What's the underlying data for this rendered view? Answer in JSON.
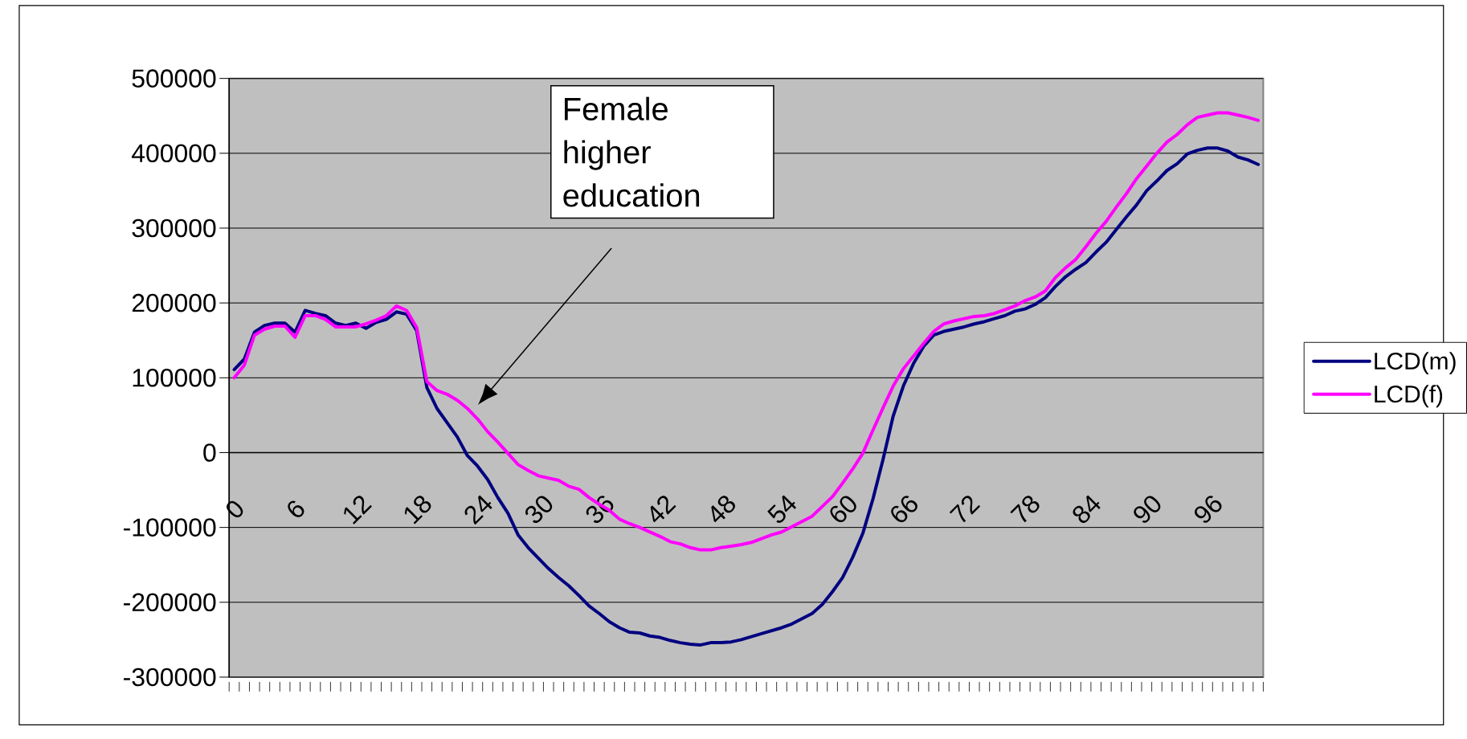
{
  "chart_data": {
    "type": "line",
    "categories": [
      "0",
      null,
      null,
      null,
      null,
      null,
      "6",
      null,
      null,
      null,
      null,
      null,
      "12",
      null,
      null,
      null,
      null,
      null,
      "18",
      null,
      null,
      null,
      null,
      null,
      "24",
      null,
      null,
      null,
      null,
      null,
      "30",
      null,
      null,
      null,
      null,
      null,
      "36",
      null,
      null,
      null,
      null,
      null,
      "42",
      null,
      null,
      null,
      null,
      null,
      "48",
      null,
      null,
      null,
      null,
      null,
      "54",
      null,
      null,
      null,
      null,
      null,
      "60",
      null,
      null,
      null,
      null,
      null,
      "66",
      null,
      null,
      null,
      null,
      null,
      "72",
      null,
      null,
      null,
      null,
      null,
      "78",
      null,
      null,
      null,
      null,
      null,
      "84",
      null,
      null,
      null,
      null,
      null,
      "90",
      null,
      null,
      null,
      null,
      null,
      "96",
      null,
      null,
      null,
      null,
      null
    ],
    "series": [
      {
        "name": "LCD(m)",
        "color": "#000080",
        "values": [
          111000,
          125000,
          161000,
          170000,
          173000,
          173000,
          161000,
          190000,
          186000,
          183000,
          173000,
          170000,
          173000,
          166000,
          174000,
          178000,
          188000,
          185000,
          163000,
          87000,
          59000,
          40000,
          21000,
          -4000,
          -18000,
          -36000,
          -60000,
          -81000,
          -110000,
          -127000,
          -141000,
          -155000,
          -167000,
          -178000,
          -191000,
          -205000,
          -215000,
          -226000,
          -234000,
          -240000,
          -241000,
          -245000,
          -247000,
          -251000,
          -254000,
          -256000,
          -257000,
          -254000,
          -254000,
          -253000,
          -250000,
          -246000,
          -242000,
          -238000,
          -234000,
          -229000,
          -222000,
          -215000,
          -203000,
          -186000,
          -167000,
          -140000,
          -108000,
          -62000,
          -9000,
          49000,
          89000,
          119000,
          142000,
          157000,
          162000,
          165000,
          168000,
          172000,
          175000,
          179000,
          183000,
          189000,
          192000,
          198000,
          207000,
          222000,
          235000,
          245000,
          254000,
          268000,
          281000,
          298000,
          315000,
          331000,
          350000,
          363000,
          377000,
          386000,
          399000,
          404000,
          407000,
          407000,
          403000,
          395000,
          391000,
          385000
        ]
      },
      {
        "name": "LCD(f)",
        "color": "#ff00ff",
        "values": [
          100000,
          117000,
          157000,
          165000,
          169000,
          169000,
          154000,
          183000,
          183000,
          178000,
          168000,
          168000,
          168000,
          172000,
          177000,
          183000,
          196000,
          190000,
          167000,
          95000,
          83000,
          78000,
          70000,
          59000,
          45000,
          28000,
          14000,
          -1000,
          -16000,
          -24000,
          -31000,
          -34000,
          -37000,
          -45000,
          -49000,
          -60000,
          -69000,
          -77000,
          -89000,
          -95000,
          -100000,
          -106000,
          -112000,
          -119000,
          -122000,
          -127000,
          -130000,
          -130000,
          -127000,
          -125000,
          -123000,
          -120000,
          -115000,
          -110000,
          -106000,
          -99000,
          -92000,
          -85000,
          -72000,
          -59000,
          -41000,
          -22000,
          -1000,
          30000,
          60000,
          89000,
          112000,
          129000,
          146000,
          162000,
          172000,
          176000,
          179000,
          182000,
          183000,
          186000,
          191000,
          196000,
          203000,
          208000,
          216000,
          234000,
          247000,
          258000,
          275000,
          293000,
          309000,
          328000,
          346000,
          366000,
          383000,
          400000,
          415000,
          425000,
          438000,
          448000,
          451000,
          454000,
          454000,
          451000,
          448000,
          444000
        ]
      }
    ],
    "ylim": [
      -300000,
      500000
    ],
    "yticks": [
      -300000,
      -200000,
      -100000,
      0,
      100000,
      200000,
      300000,
      400000,
      500000
    ],
    "grid": "y",
    "legend": "right",
    "marker": "none",
    "annotations": [
      "Female higher education"
    ]
  }
}
